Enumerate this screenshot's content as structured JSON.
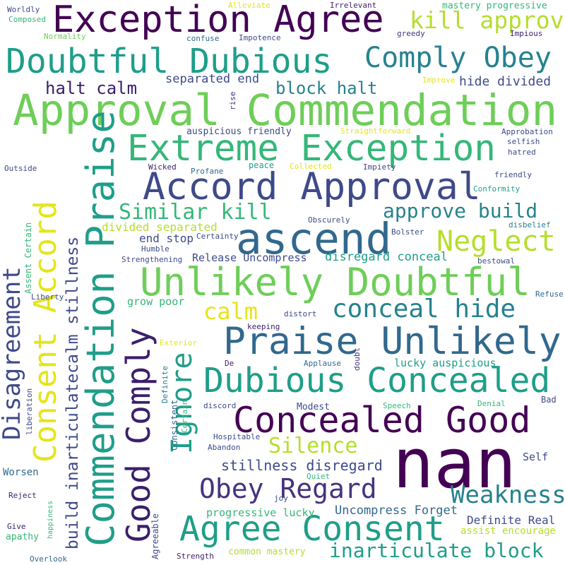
{
  "palette": {
    "background": "#ffffff",
    "dark_purple": "#440154",
    "indigo": "#3b1f6b",
    "purple_blue": "#46337e",
    "slate_blue": "#3e4a89",
    "steel_blue": "#31688e",
    "teal_blue": "#26828e",
    "teal": "#1f9e89",
    "sea_green": "#35b779",
    "green": "#6ece58",
    "lime": "#b5de2b",
    "yellow": "#e4e51a"
  },
  "words": [
    {
      "text": "Exception Agree"
    },
    {
      "text": "Doubtful Dubious"
    },
    {
      "text": "Approval Commendation"
    },
    {
      "text": "Extreme Exception"
    },
    {
      "text": "Accord Approval"
    },
    {
      "text": "ascend"
    },
    {
      "text": "Unlikely Doubtful"
    },
    {
      "text": "Praise Unlikely"
    },
    {
      "text": "Dubious Concealed"
    },
    {
      "text": "Concealed Good"
    },
    {
      "text": "nan"
    },
    {
      "text": "Agree Consent"
    },
    {
      "text": "Commendation Praise"
    },
    {
      "text": "Consent Accord"
    },
    {
      "text": "Good Comply"
    },
    {
      "text": "Ignore"
    },
    {
      "text": "Disagreement"
    },
    {
      "text": "Comply Obey"
    },
    {
      "text": "kill approve"
    },
    {
      "text": "block halt"
    },
    {
      "text": "halt calm"
    },
    {
      "text": "Similar kill"
    },
    {
      "text": "approve build"
    },
    {
      "text": "Neglect"
    },
    {
      "text": "conceal hide"
    },
    {
      "text": "calm"
    },
    {
      "text": "Silence"
    },
    {
      "text": "Obey Regard"
    },
    {
      "text": "Weakness"
    },
    {
      "text": "inarticulate block"
    },
    {
      "text": "stillness disregard"
    },
    {
      "text": "build inarticulatecalm stillness"
    },
    {
      "text": "separated end"
    },
    {
      "text": "hide divided"
    },
    {
      "text": "divided separated"
    },
    {
      "text": "end stop"
    },
    {
      "text": "disregard conceal"
    },
    {
      "text": "Release Uncompress"
    },
    {
      "text": "grow poor"
    },
    {
      "text": "lucky auspicious"
    },
    {
      "text": "progressive lucky"
    },
    {
      "text": "Uncompress Forget"
    },
    {
      "text": "Definite Real"
    },
    {
      "text": "assist encourage"
    },
    {
      "text": "common mastery"
    },
    {
      "text": "mastery progressive"
    },
    {
      "text": "auspicious friendly"
    },
    {
      "text": "Straightforward"
    },
    {
      "text": "Worldly"
    },
    {
      "text": "Composed"
    },
    {
      "text": "Normality"
    },
    {
      "text": "confuse"
    },
    {
      "text": "Impotence"
    },
    {
      "text": "Alleviate"
    },
    {
      "text": "Irrelevant"
    },
    {
      "text": "greedy"
    },
    {
      "text": "Impious"
    },
    {
      "text": "Improve"
    },
    {
      "text": "rise"
    },
    {
      "text": "Approbation"
    },
    {
      "text": "selfish"
    },
    {
      "text": "hatred"
    },
    {
      "text": "Outside"
    },
    {
      "text": "Wicked"
    },
    {
      "text": "Profane"
    },
    {
      "text": "peace"
    },
    {
      "text": "Collected"
    },
    {
      "text": "Impiety"
    },
    {
      "text": "friendly"
    },
    {
      "text": "Conformity"
    },
    {
      "text": "Obscurely"
    },
    {
      "text": "disbelief"
    },
    {
      "text": "Bolster"
    },
    {
      "text": "Certainty"
    },
    {
      "text": "Humble"
    },
    {
      "text": "Strengthening"
    },
    {
      "text": "bestowal"
    },
    {
      "text": "Refuse"
    },
    {
      "text": "Assent Certain"
    },
    {
      "text": "Liberty"
    },
    {
      "text": "distort"
    },
    {
      "text": "keeping"
    },
    {
      "text": "Exterior"
    },
    {
      "text": "De"
    },
    {
      "text": "Applause"
    },
    {
      "text": "doubt"
    },
    {
      "text": "Definite"
    },
    {
      "text": "liberation"
    },
    {
      "text": "discord"
    },
    {
      "text": "Modest"
    },
    {
      "text": "Speech"
    },
    {
      "text": "Denial"
    },
    {
      "text": "Bad"
    },
    {
      "text": "Certain"
    },
    {
      "text": "Hospitable"
    },
    {
      "text": "Abandon"
    },
    {
      "text": "Self"
    },
    {
      "text": "Worsen"
    },
    {
      "text": "Consistent"
    },
    {
      "text": "Quiet"
    },
    {
      "text": "Reject"
    },
    {
      "text": "joy"
    },
    {
      "text": "happiness"
    },
    {
      "text": "Agreeable"
    },
    {
      "text": "Give"
    },
    {
      "text": "apathy"
    },
    {
      "text": "Strength"
    },
    {
      "text": "Overlook"
    }
  ]
}
